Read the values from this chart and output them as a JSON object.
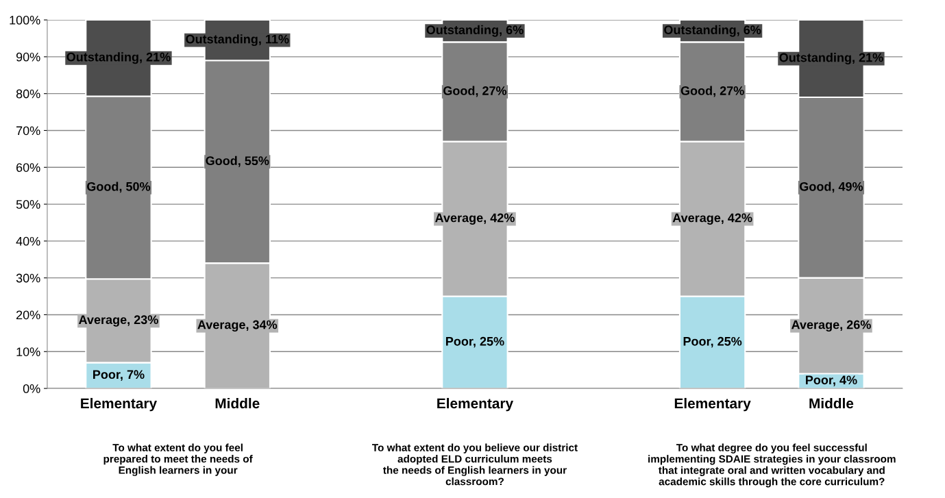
{
  "chart_data": {
    "type": "bar",
    "stacked": true,
    "categories": [
      "Elementary",
      "Middle",
      null,
      "Elementary",
      null,
      "Elementary",
      "Middle"
    ],
    "series": [
      {
        "color": "#a9dde9",
        "values": [
          7,
          0,
          null,
          25,
          null,
          25,
          4
        ],
        "value_labels": [
          "Poor, 7%",
          null,
          null,
          "Poor, 25%",
          null,
          "Poor, 25%",
          "Poor, 4%"
        ]
      },
      {
        "color": "#b3b3b3",
        "values": [
          22.7,
          34,
          null,
          42,
          null,
          42,
          26
        ],
        "value_labels": [
          "Average, 23%",
          "Average, 34%",
          null,
          "Average, 42%",
          null,
          "Average, 42%",
          "Average, 26%"
        ]
      },
      {
        "color": "#808080",
        "values": [
          49.6,
          55,
          null,
          27,
          null,
          27,
          49
        ],
        "value_labels": [
          "Good, 50%",
          "Good, 55%",
          null,
          "Good, 27%",
          null,
          "Good, 27%",
          "Good, 49%"
        ]
      },
      {
        "color": "#4d4d4d",
        "values": [
          20.7,
          11,
          null,
          6,
          null,
          6,
          21
        ],
        "value_labels": [
          "Outstanding, 21%",
          "Outstanding, 11%",
          null,
          "Outstanding, 6%",
          null,
          "Outstanding, 6%",
          "Outstanding, 21%"
        ]
      }
    ],
    "ylim": [
      0,
      100
    ],
    "yticks": [
      {
        "value": 0,
        "label": "0%"
      },
      {
        "value": 10,
        "label": "10%"
      },
      {
        "value": 20,
        "label": "20%"
      },
      {
        "value": 30,
        "label": "30%"
      },
      {
        "value": 40,
        "label": "40%"
      },
      {
        "value": 50,
        "label": "50%"
      },
      {
        "value": 60,
        "label": "60%"
      },
      {
        "value": 70,
        "label": "70%"
      },
      {
        "value": 80,
        "label": "80%"
      },
      {
        "value": 90,
        "label": "90%"
      },
      {
        "value": 100,
        "label": "100%"
      }
    ],
    "grid": "y",
    "annotations": [
      "To what extent do you feel\nprepared to meet the needs of\nEnglish learners in your",
      "To what extent do you believe our district\nadopted ELD curriculum meets\nthe needs of English learners in your\nclassroom?",
      "To what degree do you feel successful\nimplementing SDAIE strategies in your classroom\nthat integrate oral and written vocabulary and\nacademic skills through the core curriculum?"
    ]
  }
}
